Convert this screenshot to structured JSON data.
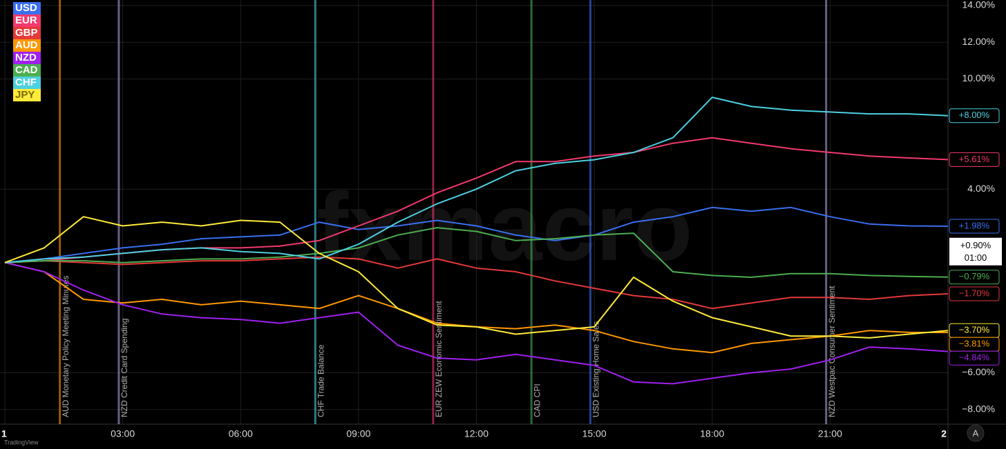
{
  "chart_data": {
    "type": "line",
    "watermark": "fxmacro",
    "brand": "TradingView",
    "button": "A",
    "x": [
      0,
      1,
      2,
      3,
      4,
      5,
      6,
      7,
      8,
      9,
      10,
      11,
      12,
      13,
      14,
      15,
      16,
      17,
      18,
      19,
      20,
      21,
      22,
      23,
      24
    ],
    "xlim": [
      0,
      24
    ],
    "xticks": [
      {
        "value": 0,
        "label": "1"
      },
      {
        "value": 3,
        "label": "03:00"
      },
      {
        "value": 6,
        "label": "06:00"
      },
      {
        "value": 9,
        "label": "09:00"
      },
      {
        "value": 12,
        "label": "12:00"
      },
      {
        "value": 15,
        "label": "15:00"
      },
      {
        "value": 18,
        "label": "18:00"
      },
      {
        "value": 21,
        "label": "21:00"
      },
      {
        "value": 24,
        "label": "2"
      }
    ],
    "ylim": [
      -8.8,
      14.3
    ],
    "yticks": [
      {
        "value": 14,
        "label": "14.00%"
      },
      {
        "value": 12,
        "label": "12.00%"
      },
      {
        "value": 10,
        "label": "10.00%"
      },
      {
        "value": 4,
        "label": "4.00%"
      },
      {
        "value": -6,
        "label": "−6.00%"
      },
      {
        "value": -8,
        "label": "−8.00%"
      }
    ],
    "grid": true,
    "legend": "top-left",
    "series": [
      {
        "name": "USD",
        "color": "#3a6ff0",
        "values": [
          0,
          0.2,
          0.5,
          0.8,
          1.0,
          1.3,
          1.4,
          1.5,
          2.2,
          1.8,
          2.0,
          2.3,
          2.0,
          1.5,
          1.2,
          1.5,
          2.2,
          2.5,
          3.0,
          2.8,
          3.0,
          2.5,
          2.1,
          2.0,
          1.98
        ],
        "value_labels": [
          null,
          null,
          null,
          null,
          null,
          null,
          null,
          null,
          null,
          null,
          null,
          null,
          null,
          null,
          null,
          null,
          null,
          null,
          null,
          null,
          null,
          null,
          null,
          null,
          "+1.98%"
        ]
      },
      {
        "name": "EUR",
        "color": "#f23a6f",
        "values": [
          0,
          0.1,
          0.3,
          0.5,
          0.7,
          0.8,
          0.8,
          0.9,
          1.2,
          2.0,
          2.8,
          3.8,
          4.6,
          5.5,
          5.5,
          5.8,
          6.0,
          6.5,
          6.8,
          6.5,
          6.2,
          6.0,
          5.8,
          5.7,
          5.61
        ],
        "value_labels": [
          null,
          null,
          null,
          null,
          null,
          null,
          null,
          null,
          null,
          null,
          null,
          null,
          null,
          null,
          null,
          null,
          null,
          null,
          null,
          null,
          null,
          null,
          null,
          null,
          "+5.61%"
        ]
      },
      {
        "name": "GBP",
        "color": "#e5393a",
        "values": [
          0,
          0.1,
          0,
          -0.1,
          0,
          0.1,
          0.1,
          0.2,
          0.3,
          0.2,
          -0.3,
          0.2,
          -0.3,
          -0.5,
          -1.0,
          -1.4,
          -1.8,
          -2.0,
          -2.5,
          -2.2,
          -1.9,
          -1.9,
          -2.0,
          -1.8,
          -1.7
        ],
        "value_labels": [
          null,
          null,
          null,
          null,
          null,
          null,
          null,
          null,
          null,
          null,
          null,
          null,
          null,
          null,
          null,
          null,
          null,
          null,
          null,
          null,
          null,
          null,
          null,
          null,
          "−1.70%"
        ]
      },
      {
        "name": "AUD",
        "color": "#ff9800",
        "values": [
          0,
          -0.5,
          -2.0,
          -2.2,
          -2.0,
          -2.3,
          -2.1,
          -2.3,
          -2.5,
          -1.8,
          -2.5,
          -3.3,
          -3.5,
          -3.6,
          -3.4,
          -3.7,
          -4.3,
          -4.7,
          -4.9,
          -4.4,
          -4.2,
          -4.0,
          -3.7,
          -3.8,
          -3.81
        ],
        "value_labels": [
          null,
          null,
          null,
          null,
          null,
          null,
          null,
          null,
          null,
          null,
          null,
          null,
          null,
          null,
          null,
          null,
          null,
          null,
          null,
          null,
          null,
          null,
          null,
          null,
          "−3.81%"
        ]
      },
      {
        "name": "NZD",
        "color": "#a020f0",
        "values": [
          0,
          -0.5,
          -1.5,
          -2.3,
          -2.8,
          -3.0,
          -3.1,
          -3.3,
          -3.0,
          -2.7,
          -4.5,
          -5.2,
          -5.3,
          -5.0,
          -5.3,
          -5.6,
          -6.5,
          -6.6,
          -6.3,
          -6.0,
          -5.8,
          -5.3,
          -4.6,
          -4.7,
          -4.84
        ],
        "value_labels": [
          null,
          null,
          null,
          null,
          null,
          null,
          null,
          null,
          null,
          null,
          null,
          null,
          null,
          null,
          null,
          null,
          null,
          null,
          null,
          null,
          null,
          null,
          null,
          null,
          "−4.84%"
        ]
      },
      {
        "name": "CAD",
        "color": "#4caf50",
        "values": [
          0,
          0.1,
          0.1,
          0.0,
          0.1,
          0.2,
          0.2,
          0.3,
          0.5,
          0.8,
          1.5,
          1.9,
          1.7,
          1.2,
          1.3,
          1.5,
          1.6,
          -0.5,
          -0.7,
          -0.8,
          -0.6,
          -0.6,
          -0.7,
          -0.75,
          -0.79
        ],
        "value_labels": [
          null,
          null,
          null,
          null,
          null,
          null,
          null,
          null,
          null,
          null,
          null,
          null,
          null,
          null,
          null,
          null,
          null,
          null,
          null,
          null,
          null,
          null,
          null,
          null,
          "−0.79%"
        ]
      },
      {
        "name": "CHF",
        "color": "#4dd0e1",
        "values": [
          0,
          0.2,
          0.3,
          0.5,
          0.7,
          0.8,
          0.6,
          0.5,
          0.2,
          1.0,
          2.2,
          3.2,
          4.0,
          5.0,
          5.4,
          5.6,
          6.0,
          6.8,
          9.0,
          8.5,
          8.3,
          8.2,
          8.1,
          8.1,
          8.0
        ],
        "value_labels": [
          null,
          null,
          null,
          null,
          null,
          null,
          null,
          null,
          null,
          null,
          null,
          null,
          null,
          null,
          null,
          null,
          null,
          null,
          null,
          null,
          null,
          null,
          null,
          null,
          "+8.00%"
        ]
      },
      {
        "name": "JPY",
        "color": "#ffeb3b",
        "values": [
          0,
          0.8,
          2.5,
          2.0,
          2.2,
          2.0,
          2.3,
          2.2,
          0.5,
          -0.5,
          -2.5,
          -3.4,
          -3.5,
          -3.9,
          -3.7,
          -3.5,
          -0.8,
          -2.1,
          -3.0,
          -3.5,
          -4.0,
          -4.0,
          -4.1,
          -3.9,
          -3.7
        ],
        "value_labels": [
          null,
          null,
          null,
          null,
          null,
          null,
          null,
          null,
          null,
          null,
          null,
          null,
          null,
          null,
          null,
          null,
          null,
          null,
          null,
          null,
          null,
          null,
          null,
          null,
          "−3.70%"
        ]
      }
    ],
    "events": [
      {
        "x": 1.4,
        "label": "AUD Monetary Policy Meeting Minutes",
        "color": "#ff9800"
      },
      {
        "x": 2.9,
        "label": "NZD Credit Card Spending",
        "color": "#b39ddb"
      },
      {
        "x": 7.9,
        "label": "CHF Trade Balance",
        "color": "#4dd0e1"
      },
      {
        "x": 10.9,
        "label": "EUR ZEW Economic Sentiment",
        "color": "#f23a6f"
      },
      {
        "x": 13.4,
        "label": "CAD CPI",
        "color": "#4caf50"
      },
      {
        "x": 14.9,
        "label": "USD Existing Home Sales",
        "color": "#3a6ff0"
      },
      {
        "x": 20.9,
        "label": "NZD Westpac Consumer Sentiment",
        "color": "#b39ddb"
      }
    ],
    "crosshair": {
      "y": {
        "value": 0.9,
        "label": "+0.90%"
      },
      "x": {
        "value": 1,
        "label": "01:00"
      }
    }
  }
}
